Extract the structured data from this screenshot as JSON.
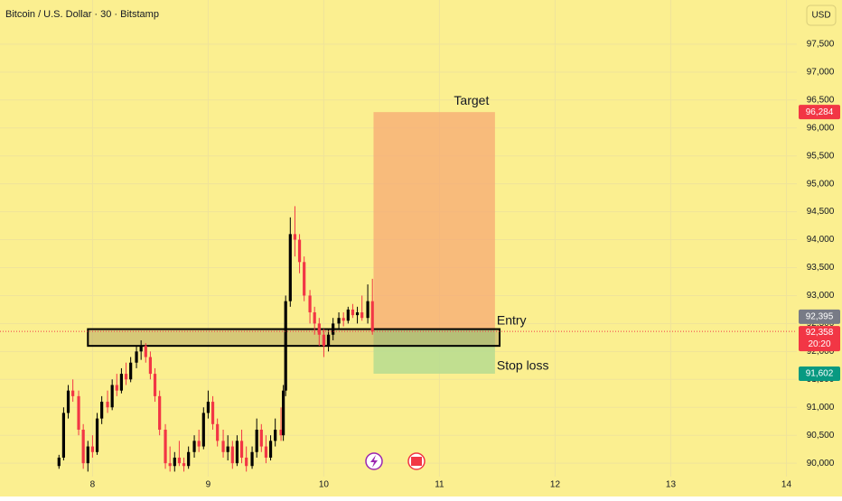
{
  "chart_data": {
    "type": "candlestick",
    "title": "Bitcoin / U.S. Dollar · 30 · Bitstamp",
    "currency": "USD",
    "background": "#fbef90",
    "up_color": "#000000",
    "down_color": "#f23645",
    "grid": true,
    "xlim": [
      7.2,
      14.09
    ],
    "xticks": [
      8,
      9,
      10,
      11,
      12,
      13,
      14
    ],
    "ylim": [
      89760,
      98290
    ],
    "yticks": [
      {
        "value": 90000,
        "label": "90,000"
      },
      {
        "value": 90500,
        "label": "90,500"
      },
      {
        "value": 91000,
        "label": "91,000"
      },
      {
        "value": 91500,
        "label": "91,500"
      },
      {
        "value": 92000,
        "label": "92,000"
      },
      {
        "value": 92500,
        "label": "92,500"
      },
      {
        "value": 93000,
        "label": "93,000"
      },
      {
        "value": 93500,
        "label": "93,500"
      },
      {
        "value": 94000,
        "label": "94,000"
      },
      {
        "value": 94500,
        "label": "94,500"
      },
      {
        "value": 95000,
        "label": "95,000"
      },
      {
        "value": 95500,
        "label": "95,500"
      },
      {
        "value": 96000,
        "label": "96,000"
      },
      {
        "value": 96500,
        "label": "96,500"
      },
      {
        "value": 97000,
        "label": "97,000"
      },
      {
        "value": 97500,
        "label": "97,500"
      }
    ],
    "x": [
      7.71,
      7.75,
      7.79,
      7.83,
      7.88,
      7.92,
      7.96,
      8.0,
      8.04,
      8.08,
      8.13,
      8.17,
      8.21,
      8.25,
      8.29,
      8.33,
      8.38,
      8.42,
      8.46,
      8.5,
      8.54,
      8.58,
      8.63,
      8.67,
      8.71,
      8.75,
      8.79,
      8.83,
      8.88,
      8.92,
      8.96,
      9.0,
      9.04,
      9.08,
      9.13,
      9.17,
      9.21,
      9.25,
      9.29,
      9.33,
      9.38,
      9.42,
      9.46,
      9.5,
      9.54,
      9.58,
      9.63,
      9.65,
      9.67,
      9.71,
      9.75,
      9.79,
      9.83,
      9.88,
      9.92,
      9.96,
      10.0,
      10.04,
      10.08,
      10.13,
      10.17,
      10.21,
      10.25,
      10.29,
      10.33,
      10.38,
      10.42
    ],
    "open": [
      89950,
      90100,
      90900,
      91300,
      91200,
      90600,
      90000,
      90300,
      90200,
      90800,
      91100,
      91000,
      91400,
      91300,
      91600,
      91500,
      91800,
      92000,
      92100,
      91900,
      91600,
      91200,
      90600,
      90000,
      89950,
      90100,
      90000,
      89950,
      90200,
      90400,
      90300,
      90900,
      91100,
      90700,
      90400,
      90200,
      90300,
      90000,
      90400,
      90100,
      89950,
      90200,
      90600,
      90300,
      90100,
      90400,
      90600,
      90500,
      91300,
      92900,
      94100,
      94000,
      93600,
      93000,
      92700,
      92500,
      92300,
      92100,
      92300,
      92500,
      92600,
      92550,
      92750,
      92650,
      92700,
      92600,
      92900
    ],
    "high": [
      90150,
      91000,
      91400,
      91500,
      91300,
      90700,
      90400,
      90500,
      90900,
      91200,
      91300,
      91500,
      91600,
      91700,
      91800,
      91900,
      92100,
      92200,
      92150,
      92000,
      91700,
      91300,
      90700,
      90300,
      90200,
      90400,
      90100,
      90300,
      90500,
      90600,
      91000,
      91300,
      91200,
      90800,
      90600,
      90500,
      90400,
      90500,
      90600,
      90300,
      90300,
      90800,
      90700,
      90500,
      90500,
      90800,
      91000,
      91400,
      93000,
      94400,
      94600,
      94100,
      93700,
      93100,
      92800,
      92600,
      92400,
      92400,
      92600,
      92700,
      92700,
      92800,
      92850,
      92800,
      93000,
      93200,
      93300
    ],
    "low": [
      89900,
      90050,
      90800,
      91100,
      90500,
      89900,
      89850,
      90100,
      90150,
      90700,
      90900,
      90950,
      91200,
      91250,
      91400,
      91450,
      91700,
      91850,
      91800,
      91500,
      91100,
      90500,
      89900,
      89850,
      89850,
      89950,
      89850,
      89900,
      90100,
      90200,
      90250,
      90800,
      90600,
      90300,
      90100,
      90050,
      89900,
      89950,
      90000,
      89850,
      89900,
      90100,
      90200,
      90000,
      90050,
      90300,
      90400,
      90400,
      91200,
      92800,
      93700,
      93400,
      92900,
      92500,
      92300,
      92100,
      91900,
      92000,
      92200,
      92400,
      92450,
      92500,
      92600,
      92500,
      92550,
      92500,
      92300
    ],
    "close": [
      90100,
      90900,
      91300,
      91200,
      90600,
      90000,
      90300,
      90200,
      90800,
      91100,
      91000,
      91400,
      91300,
      91600,
      91500,
      91800,
      92000,
      92100,
      91900,
      91600,
      91200,
      90600,
      90000,
      89950,
      90100,
      90000,
      89950,
      90200,
      90400,
      90300,
      90900,
      91100,
      90700,
      90400,
      90200,
      90300,
      90000,
      90400,
      90100,
      89950,
      90200,
      90600,
      90300,
      90100,
      90400,
      90600,
      90500,
      91300,
      92900,
      94100,
      94000,
      93600,
      93000,
      92700,
      92500,
      92300,
      92100,
      92300,
      92500,
      92600,
      92550,
      92750,
      92650,
      92700,
      92600,
      92900,
      92358
    ],
    "zone": {
      "x": [
        7.96,
        11.52
      ],
      "y": [
        92100,
        92400
      ]
    },
    "position": {
      "x": [
        10.43,
        11.48
      ],
      "target": {
        "value": 96284,
        "label": "96,284"
      },
      "entry": {
        "value": 92395,
        "label": "92,395"
      },
      "stop": {
        "value": 91602,
        "label": "91,602"
      },
      "target_text": "Target",
      "entry_text": "Entry",
      "stop_text": "Stop loss"
    },
    "current_price": {
      "value": 92358,
      "label": "92,358",
      "countdown": "20:20"
    }
  }
}
